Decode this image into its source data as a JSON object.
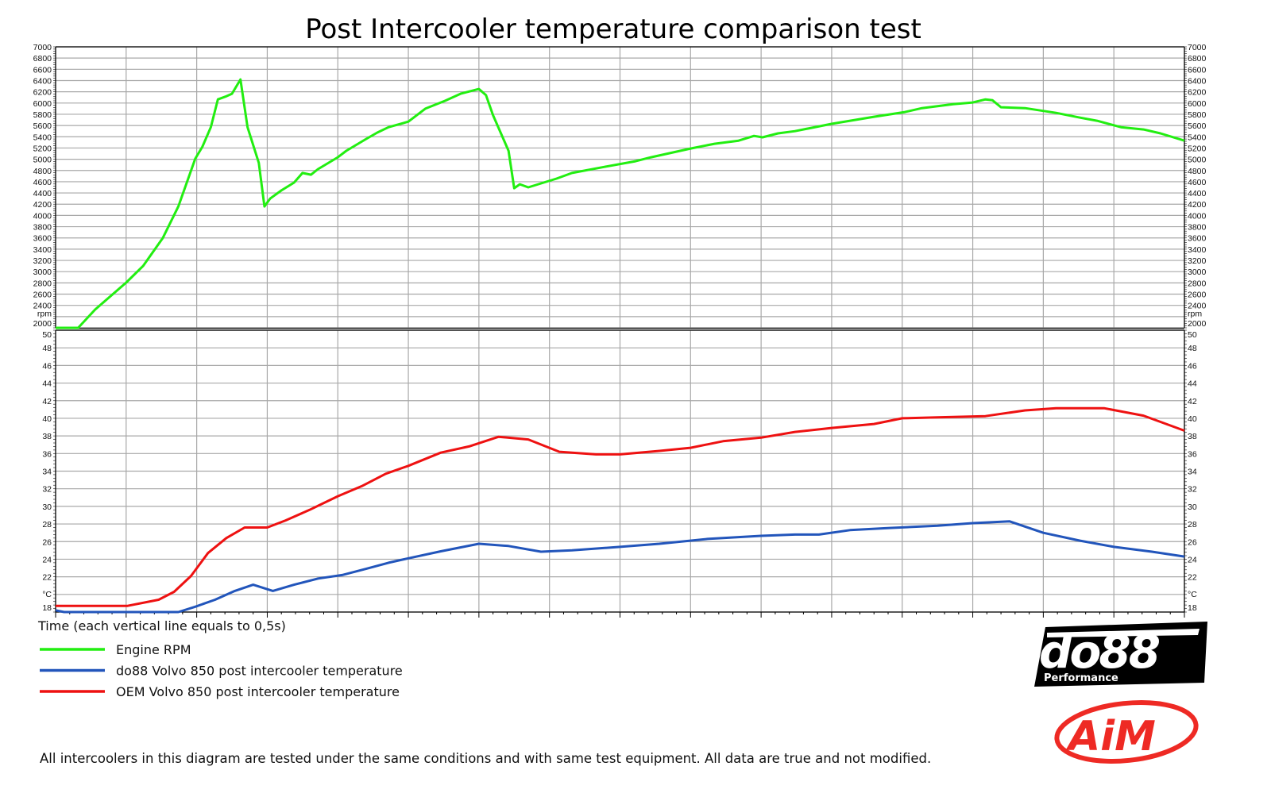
{
  "chart_data": {
    "type": "line",
    "title": "Post Intercooler temperature comparison test",
    "xlabel": "Time (each vertical line equals to 0,5s)",
    "xlim": [
      0,
      8
    ],
    "x_grid_step": 0.5,
    "grid": true,
    "legend_placement": "bottom-left",
    "panels": [
      {
        "unit_label": "rpm",
        "ylim": [
          2000,
          7000
        ],
        "y_ticks": [
          2000,
          2400,
          2600,
          2800,
          3000,
          3200,
          3400,
          3600,
          3800,
          4000,
          4200,
          4400,
          4600,
          4800,
          5000,
          5200,
          5400,
          5600,
          5800,
          6000,
          6200,
          6400,
          6600,
          6800,
          7000
        ],
        "series": [
          {
            "name": "Engine RPM",
            "color": "#22ee11",
            "points": [
              [
                0,
                2000
              ],
              [
                0.16,
                2000
              ],
              [
                0.28,
                2325
              ],
              [
                0.5,
                2805
              ],
              [
                0.62,
                3100
              ],
              [
                0.76,
                3600
              ],
              [
                0.87,
                4160
              ],
              [
                0.99,
                5010
              ],
              [
                1.04,
                5220
              ],
              [
                1.1,
                5570
              ],
              [
                1.15,
                6065
              ],
              [
                1.21,
                6120
              ],
              [
                1.25,
                6165
              ],
              [
                1.31,
                6420
              ],
              [
                1.36,
                5570
              ],
              [
                1.44,
                4935
              ],
              [
                1.48,
                4160
              ],
              [
                1.52,
                4300
              ],
              [
                1.6,
                4445
              ],
              [
                1.69,
                4585
              ],
              [
                1.75,
                4755
              ],
              [
                1.81,
                4725
              ],
              [
                1.86,
                4825
              ],
              [
                2.0,
                5035
              ],
              [
                2.06,
                5150
              ],
              [
                2.2,
                5360
              ],
              [
                2.28,
                5475
              ],
              [
                2.36,
                5570
              ],
              [
                2.5,
                5670
              ],
              [
                2.62,
                5900
              ],
              [
                2.76,
                6040
              ],
              [
                2.87,
                6165
              ],
              [
                3.0,
                6250
              ],
              [
                3.05,
                6140
              ],
              [
                3.1,
                5785
              ],
              [
                3.21,
                5150
              ],
              [
                3.25,
                4485
              ],
              [
                3.29,
                4555
              ],
              [
                3.35,
                4500
              ],
              [
                3.55,
                4655
              ],
              [
                3.66,
                4755
              ],
              [
                3.89,
                4865
              ],
              [
                4.11,
                4965
              ],
              [
                4.22,
                5035
              ],
              [
                4.5,
                5190
              ],
              [
                4.67,
                5275
              ],
              [
                4.84,
                5330
              ],
              [
                4.95,
                5415
              ],
              [
                5.01,
                5390
              ],
              [
                5.12,
                5460
              ],
              [
                5.24,
                5500
              ],
              [
                5.5,
                5630
              ],
              [
                5.8,
                5755
              ],
              [
                6.02,
                5840
              ],
              [
                6.14,
                5910
              ],
              [
                6.36,
                5980
              ],
              [
                6.5,
                6010
              ],
              [
                6.59,
                6065
              ],
              [
                6.64,
                6050
              ],
              [
                6.7,
                5925
              ],
              [
                6.87,
                5910
              ],
              [
                7.09,
                5825
              ],
              [
                7.26,
                5740
              ],
              [
                7.38,
                5685
              ],
              [
                7.55,
                5570
              ],
              [
                7.71,
                5530
              ],
              [
                7.83,
                5460
              ],
              [
                8.0,
                5330
              ]
            ]
          }
        ]
      },
      {
        "unit_label": "°C",
        "ylim": [
          18,
          50
        ],
        "y_ticks": [
          18,
          22,
          24,
          26,
          28,
          30,
          32,
          34,
          36,
          38,
          40,
          42,
          44,
          46,
          48,
          50
        ],
        "series": [
          {
            "name": "do88 Volvo 850 post intercooler temperature",
            "color": "#2255bb",
            "points": [
              [
                0,
                18.2
              ],
              [
                0.06,
                18
              ],
              [
                0.87,
                18
              ],
              [
                0.99,
                18.6
              ],
              [
                1.13,
                19.4
              ],
              [
                1.27,
                20.4
              ],
              [
                1.4,
                21.1
              ],
              [
                1.54,
                20.4
              ],
              [
                1.69,
                21.1
              ],
              [
                1.86,
                21.8
              ],
              [
                2.03,
                22.2
              ],
              [
                2.2,
                22.9
              ],
              [
                2.36,
                23.6
              ],
              [
                2.5,
                24.1
              ],
              [
                2.73,
                24.9
              ],
              [
                3.0,
                25.75
              ],
              [
                3.21,
                25.5
              ],
              [
                3.44,
                24.85
              ],
              [
                3.66,
                25.0
              ],
              [
                4.0,
                25.4
              ],
              [
                4.28,
                25.75
              ],
              [
                4.62,
                26.3
              ],
              [
                5.0,
                26.65
              ],
              [
                5.24,
                26.8
              ],
              [
                5.41,
                26.8
              ],
              [
                5.63,
                27.3
              ],
              [
                5.91,
                27.55
              ],
              [
                6.25,
                27.8
              ],
              [
                6.5,
                28.1
              ],
              [
                6.76,
                28.3
              ],
              [
                7.0,
                27.0
              ],
              [
                7.26,
                26.1
              ],
              [
                7.5,
                25.4
              ],
              [
                7.77,
                24.85
              ],
              [
                8.0,
                24.3
              ]
            ]
          },
          {
            "name": "OEM Volvo 850 post intercooler temperature",
            "color": "#ee1111",
            "points": [
              [
                0,
                18.7
              ],
              [
                0.51,
                18.7
              ],
              [
                0.73,
                19.4
              ],
              [
                0.84,
                20.3
              ],
              [
                0.96,
                22.1
              ],
              [
                1.08,
                24.7
              ],
              [
                1.21,
                26.4
              ],
              [
                1.34,
                27.6
              ],
              [
                1.5,
                27.6
              ],
              [
                1.63,
                28.4
              ],
              [
                1.8,
                29.6
              ],
              [
                2.0,
                31.15
              ],
              [
                2.17,
                32.3
              ],
              [
                2.34,
                33.7
              ],
              [
                2.5,
                34.6
              ],
              [
                2.73,
                36.1
              ],
              [
                2.93,
                36.8
              ],
              [
                3.14,
                37.9
              ],
              [
                3.35,
                37.6
              ],
              [
                3.57,
                36.2
              ],
              [
                3.83,
                35.9
              ],
              [
                4.0,
                35.9
              ],
              [
                4.28,
                36.3
              ],
              [
                4.5,
                36.65
              ],
              [
                4.73,
                37.4
              ],
              [
                5.0,
                37.8
              ],
              [
                5.24,
                38.45
              ],
              [
                5.5,
                38.9
              ],
              [
                5.8,
                39.35
              ],
              [
                6.0,
                40.0
              ],
              [
                6.25,
                40.1
              ],
              [
                6.59,
                40.25
              ],
              [
                6.87,
                40.9
              ],
              [
                7.09,
                41.15
              ],
              [
                7.43,
                41.15
              ],
              [
                7.71,
                40.3
              ],
              [
                8.0,
                38.6
              ]
            ]
          }
        ]
      }
    ]
  },
  "footer": "All intercoolers in this diagram are tested under the same conditions and with same test equipment. All data are true and not modified.",
  "logos": {
    "do88": "do88",
    "do88_sub": "Performance",
    "aim": "AiM"
  }
}
